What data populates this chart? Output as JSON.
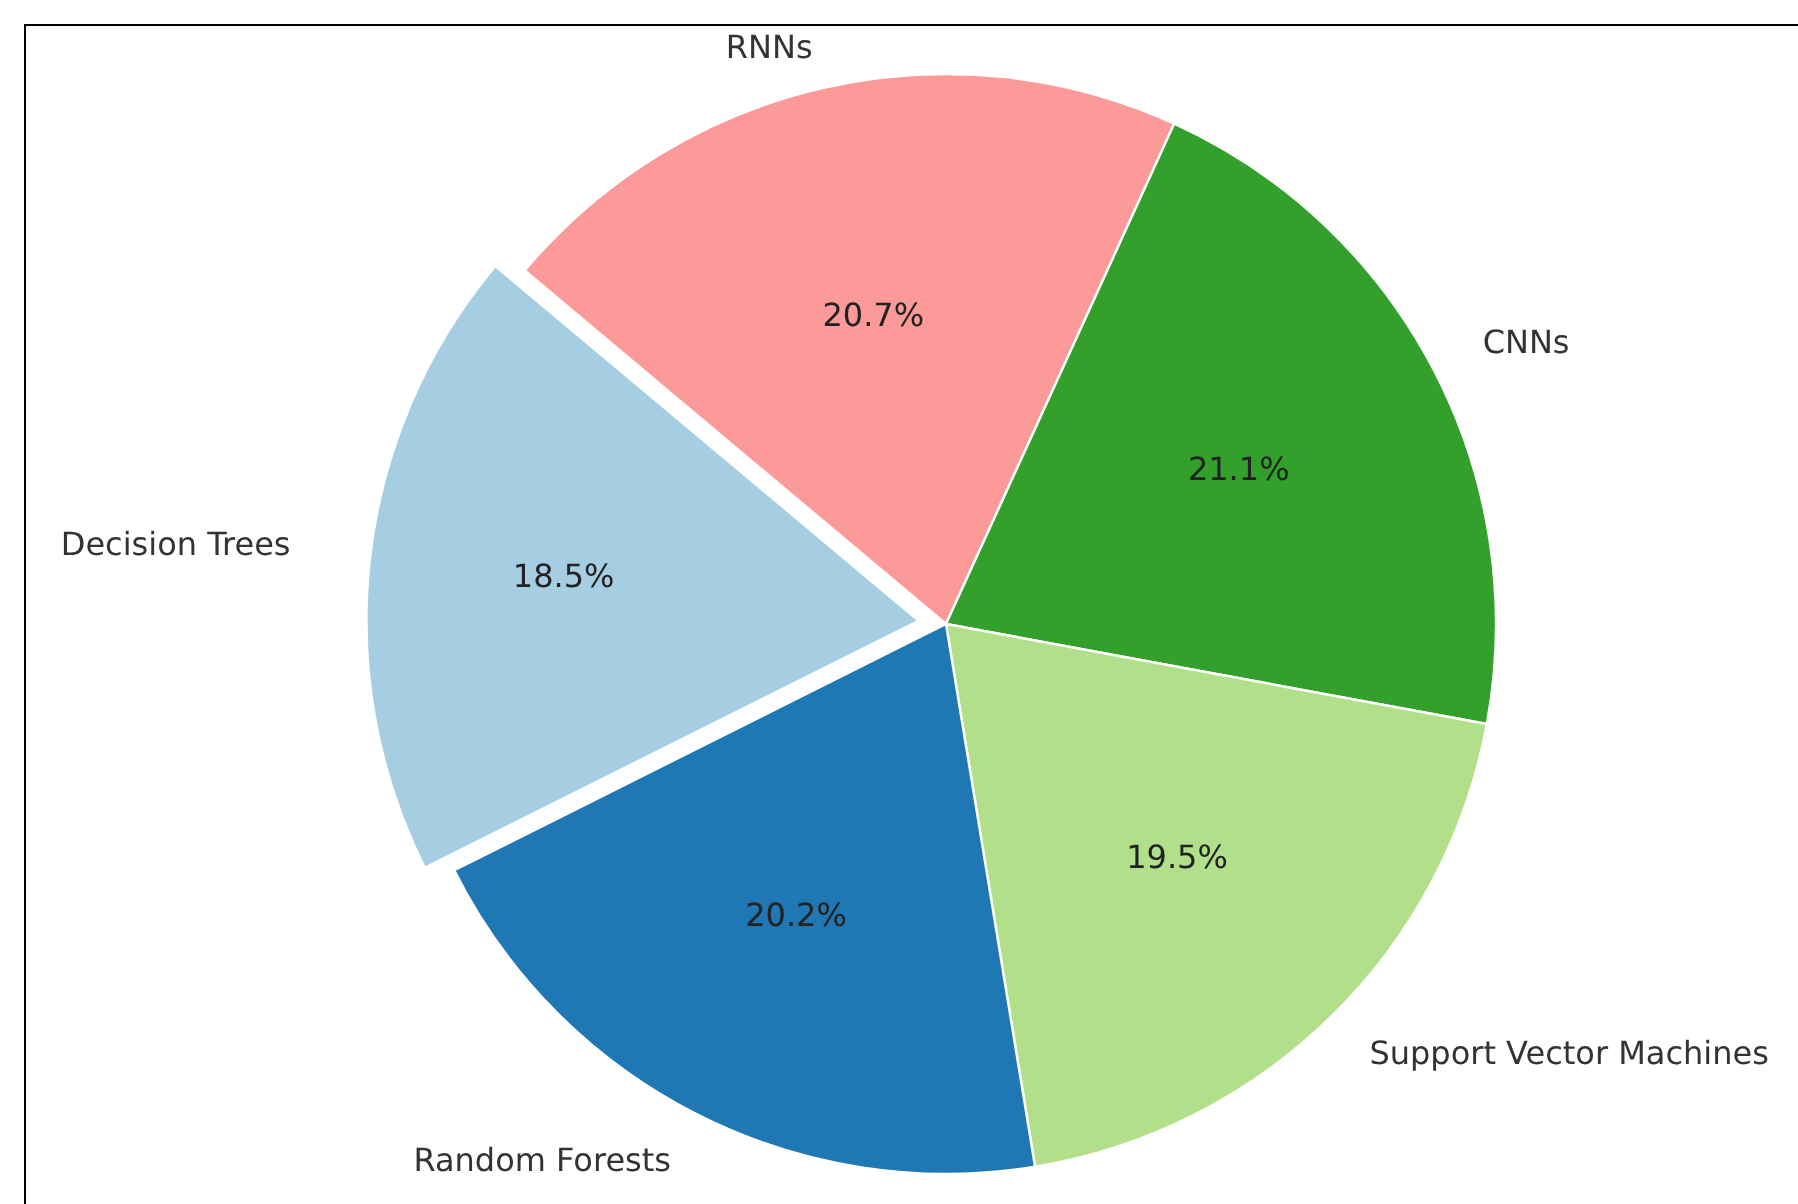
{
  "chart_data": {
    "type": "pie",
    "categories": [
      "Decision Trees",
      "Random Forests",
      "Support Vector Machines",
      "CNNs",
      "RNNs"
    ],
    "values": [
      18.5,
      20.2,
      19.5,
      21.1,
      20.7
    ],
    "value_labels": [
      "18.5%",
      "20.2%",
      "19.5%",
      "21.1%",
      "20.7%"
    ],
    "colors": [
      "#a6cee3",
      "#1f78b4",
      "#b2df8a",
      "#33a02c",
      "#fb9a99"
    ],
    "legend": false
  }
}
